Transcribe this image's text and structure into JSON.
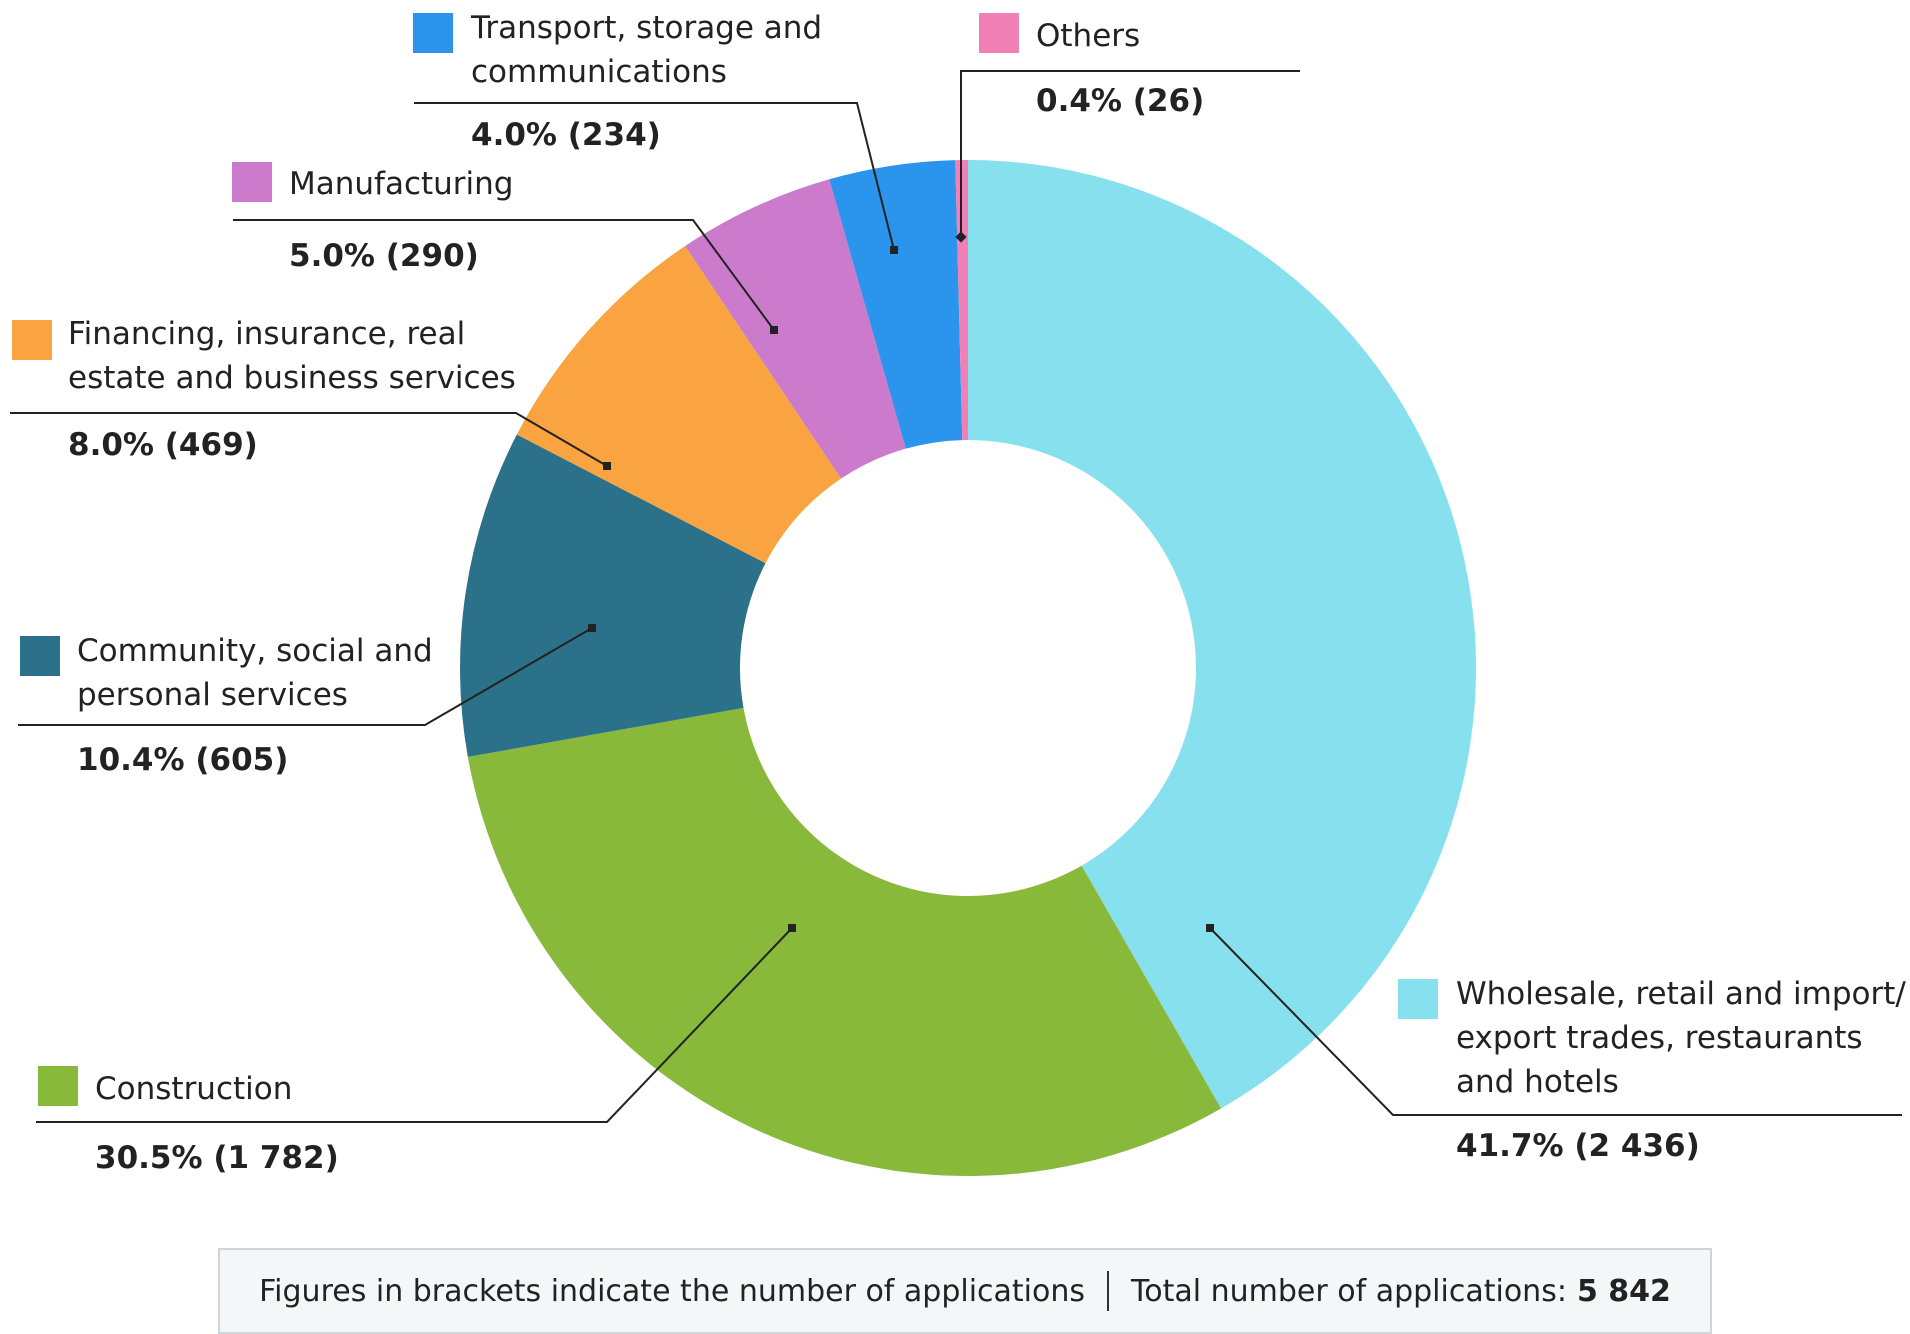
{
  "chart_data": {
    "type": "pie",
    "variant": "donut",
    "title": "",
    "unit": "percent of applications",
    "slices": [
      {
        "name": "Wholesale, retail and import/ export trades, restaurants and hotels",
        "lines": [
          "Wholesale, retail and import/",
          "export trades, restaurants",
          "and hotels"
        ],
        "percent": 41.7,
        "count": 2436,
        "value_label": "41.7% (2 436)",
        "color": "#87e0ee"
      },
      {
        "name": "Construction",
        "lines": [
          "Construction"
        ],
        "percent": 30.5,
        "count": 1782,
        "value_label": "30.5% (1 782)",
        "color": "#88b93b"
      },
      {
        "name": "Community, social and personal services",
        "lines": [
          "Community, social and",
          "personal services"
        ],
        "percent": 10.4,
        "count": 605,
        "value_label": "10.4% (605)",
        "color": "#2c718a"
      },
      {
        "name": "Financing, insurance, real estate and business services",
        "lines": [
          "Financing, insurance, real",
          "estate and business services"
        ],
        "percent": 8.0,
        "count": 469,
        "value_label": "8.0% (469)",
        "color": "#f9a441"
      },
      {
        "name": "Manufacturing",
        "lines": [
          "Manufacturing"
        ],
        "percent": 5.0,
        "count": 290,
        "value_label": "5.0% (290)",
        "color": "#cc7bcc"
      },
      {
        "name": "Transport, storage and communications",
        "lines": [
          "Transport, storage and",
          "communications"
        ],
        "percent": 4.0,
        "count": 234,
        "value_label": "4.0% (234)",
        "color": "#2b94ec"
      },
      {
        "name": "Others",
        "lines": [
          "Others"
        ],
        "percent": 0.4,
        "count": 26,
        "value_label": "0.4% (26)",
        "color": "#f180b6"
      }
    ]
  },
  "footer": {
    "note": "Figures in brackets indicate the number of applications",
    "total_label": "Total number of applications:",
    "total_value": "5 842"
  }
}
